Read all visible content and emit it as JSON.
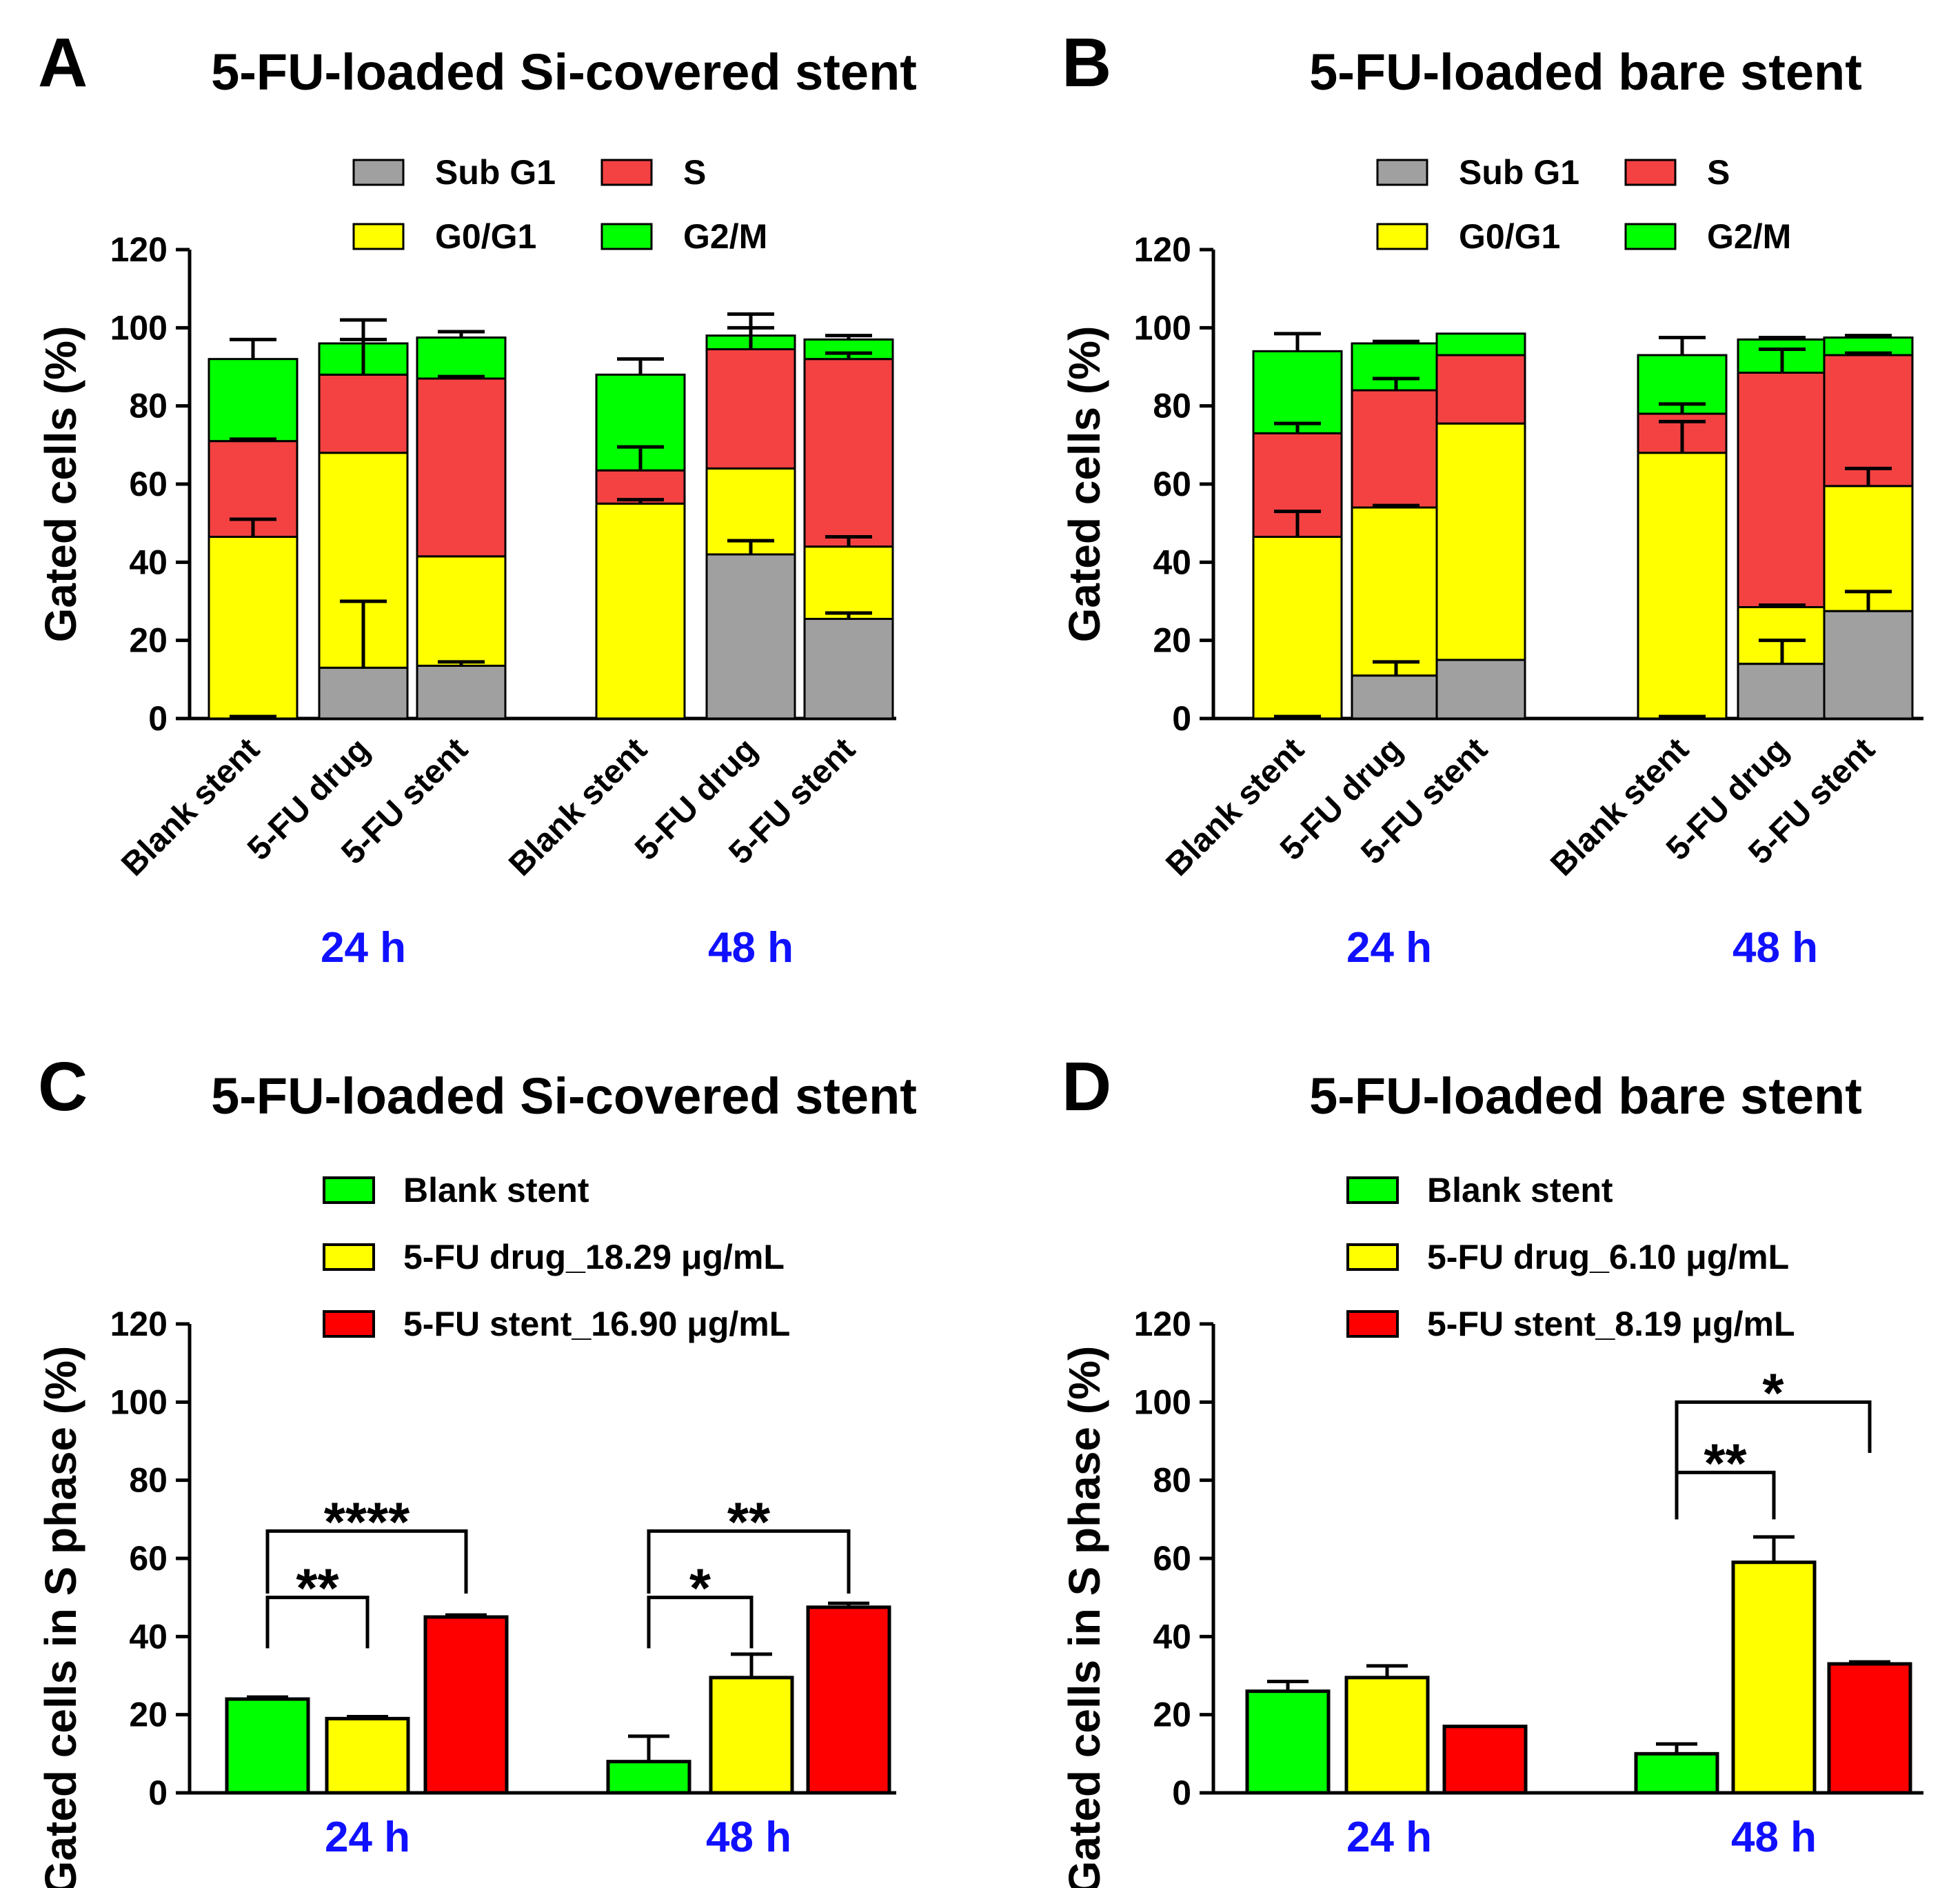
{
  "colors": {
    "sub_g1": "#a0a0a0",
    "g0g1": "#ffff00",
    "s_stack": "#f44242",
    "g2m": "#00ff00",
    "blank": "#00ff00",
    "drug": "#ffff00",
    "stent": "#ff0000",
    "group_label": "#1010ff"
  },
  "chart_data": [
    {
      "id": "A",
      "letter": "A",
      "title": "5-FU-loaded Si-covered stent",
      "type": "bar",
      "stacked": true,
      "ylabel": "Gated cells (%)",
      "ylim": [
        0,
        120
      ],
      "yticks": [
        "0",
        "20",
        "40",
        "60",
        "80",
        "100",
        "120"
      ],
      "legend": [
        "Sub G1",
        "S",
        "G0/G1",
        "G2/M"
      ],
      "groups": [
        "24 h",
        "48 h"
      ],
      "categories": [
        "Blank stent",
        "5-FU drug",
        "5-FU stent"
      ],
      "series": [
        {
          "name": "Sub G1",
          "values": [
            [
              0,
              13,
              13.5
            ],
            [
              0,
              42,
              25.5
            ]
          ],
          "errors": [
            [
              0.5,
              17,
              1
            ],
            [
              0,
              3.5,
              1.5
            ]
          ]
        },
        {
          "name": "G0/G1",
          "values": [
            [
              46.5,
              55,
              28
            ],
            [
              55,
              22,
              18.5
            ]
          ],
          "errors": [
            [
              4.5,
              0,
              0
            ],
            [
              1,
              0,
              2.5
            ]
          ]
        },
        {
          "name": "S",
          "values": [
            [
              24.5,
              20,
              45.5
            ],
            [
              8.5,
              30.5,
              48
            ]
          ],
          "errors": [
            [
              0.5,
              9,
              0.5
            ],
            [
              6,
              9,
              1.5
            ]
          ]
        },
        {
          "name": "G2/M",
          "values": [
            [
              21,
              8,
              10.5
            ],
            [
              24.5,
              3.5,
              5
            ]
          ],
          "errors": [
            [
              5,
              6,
              1.5
            ],
            [
              4,
              2,
              1
            ]
          ]
        }
      ]
    },
    {
      "id": "B",
      "letter": "B",
      "title": "5-FU-loaded bare stent",
      "type": "bar",
      "stacked": true,
      "ylabel": "Gated cells (%)",
      "ylim": [
        0,
        120
      ],
      "yticks": [
        "0",
        "20",
        "40",
        "60",
        "80",
        "100",
        "120"
      ],
      "legend": [
        "Sub G1",
        "S",
        "G0/G1",
        "G2/M"
      ],
      "groups": [
        "24 h",
        "48 h"
      ],
      "categories": [
        "Blank stent",
        "5-FU drug",
        "5-FU stent"
      ],
      "series": [
        {
          "name": "Sub G1",
          "values": [
            [
              0,
              11,
              15
            ],
            [
              0,
              14,
              27.5
            ]
          ],
          "errors": [
            [
              0.5,
              3.5,
              0
            ],
            [
              0.5,
              6,
              5
            ]
          ]
        },
        {
          "name": "G0/G1",
          "values": [
            [
              46.5,
              43,
              60.5
            ],
            [
              68,
              14.5,
              32
            ]
          ],
          "errors": [
            [
              6.5,
              0.5,
              0
            ],
            [
              8,
              0.5,
              4.5
            ]
          ]
        },
        {
          "name": "S",
          "values": [
            [
              26.5,
              30,
              17.5
            ],
            [
              10,
              60,
              33.5
            ]
          ],
          "errors": [
            [
              2.5,
              3,
              0
            ],
            [
              2.5,
              6,
              0.5
            ]
          ]
        },
        {
          "name": "G2/M",
          "values": [
            [
              21,
              12,
              5.5
            ],
            [
              15,
              8.5,
              4.5
            ]
          ],
          "errors": [
            [
              4.5,
              0.5,
              0
            ],
            [
              4.5,
              0.5,
              0.5
            ]
          ]
        }
      ]
    },
    {
      "id": "C",
      "letter": "C",
      "title": "5-FU-loaded Si-covered stent",
      "type": "bar",
      "stacked": false,
      "ylabel": "Gated cells in S phase (%)",
      "ylim": [
        0,
        120
      ],
      "yticks": [
        "0",
        "20",
        "40",
        "60",
        "80",
        "100",
        "120"
      ],
      "legend": [
        "Blank stent",
        "5-FU drug_18.29 μg/mL",
        "5-FU stent_16.90 μg/mL"
      ],
      "groups": [
        "24 h",
        "48 h"
      ],
      "series": [
        {
          "name": "Blank stent",
          "values": [
            24,
            8
          ],
          "errors": [
            0.5,
            6.5
          ]
        },
        {
          "name": "5-FU drug",
          "values": [
            19,
            29.5
          ],
          "errors": [
            0.5,
            6
          ]
        },
        {
          "name": "5-FU stent",
          "values": [
            45,
            47.5
          ],
          "errors": [
            0.5,
            1
          ]
        }
      ],
      "significance": [
        {
          "group": 0,
          "from": 0,
          "to": 1,
          "label": "**",
          "level": 1
        },
        {
          "group": 0,
          "from": 0,
          "to": 2,
          "label": "****",
          "level": 2
        },
        {
          "group": 1,
          "from": 0,
          "to": 1,
          "label": "*",
          "level": 1
        },
        {
          "group": 1,
          "from": 0,
          "to": 2,
          "label": "**",
          "level": 2
        }
      ]
    },
    {
      "id": "D",
      "letter": "D",
      "title": "5-FU-loaded bare stent",
      "type": "bar",
      "stacked": false,
      "ylabel": "Gated cells in S phase (%)",
      "ylim": [
        0,
        120
      ],
      "yticks": [
        "0",
        "20",
        "40",
        "60",
        "80",
        "100",
        "120"
      ],
      "legend": [
        "Blank stent",
        "5-FU drug_6.10 μg/mL",
        "5-FU stent_8.19 μg/mL"
      ],
      "groups": [
        "24 h",
        "48 h"
      ],
      "series": [
        {
          "name": "Blank stent",
          "values": [
            26,
            10
          ],
          "errors": [
            2.5,
            2.5
          ]
        },
        {
          "name": "5-FU drug",
          "values": [
            29.5,
            59
          ],
          "errors": [
            3,
            6.5
          ]
        },
        {
          "name": "5-FU stent",
          "values": [
            17,
            33
          ],
          "errors": [
            0,
            0.5
          ]
        }
      ],
      "significance": [
        {
          "group": 1,
          "from": 0,
          "to": 1,
          "label": "**",
          "level": 1
        },
        {
          "group": 1,
          "from": 0,
          "to": 2,
          "label": "*",
          "level": 2
        }
      ]
    }
  ]
}
